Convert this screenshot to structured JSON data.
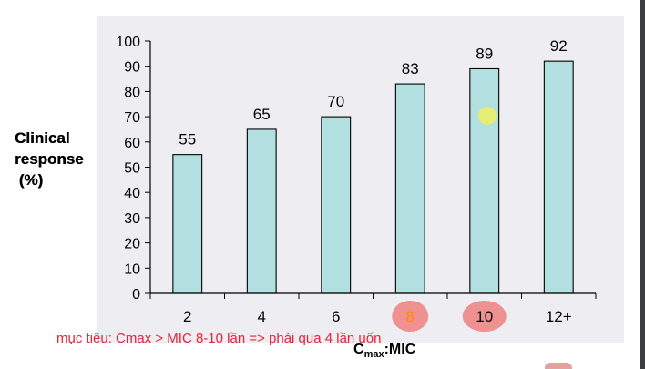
{
  "chart_data": {
    "type": "bar",
    "categories": [
      "2",
      "4",
      "6",
      "8",
      "10",
      "12+"
    ],
    "values": [
      55,
      65,
      70,
      83,
      89,
      92
    ],
    "ylim": [
      0,
      100
    ],
    "yticks": [
      0,
      10,
      20,
      30,
      40,
      50,
      60,
      70,
      80,
      90,
      100
    ],
    "ylabel_lines": [
      "Clinical",
      "response",
      " (%)"
    ],
    "xlabel_main": "C",
    "xlabel_sub": "max",
    "xlabel_rest": ":MIC",
    "grid": false,
    "bar_color": "#b2dfe0",
    "highlighted_categories": [
      "8",
      "10"
    ],
    "highlight_color": "#f08080",
    "pointer_color": "#eef060"
  },
  "annotation": "mục tiêu: Cmax > MIC 8-10 lần => phải qua 4 lần uốn"
}
